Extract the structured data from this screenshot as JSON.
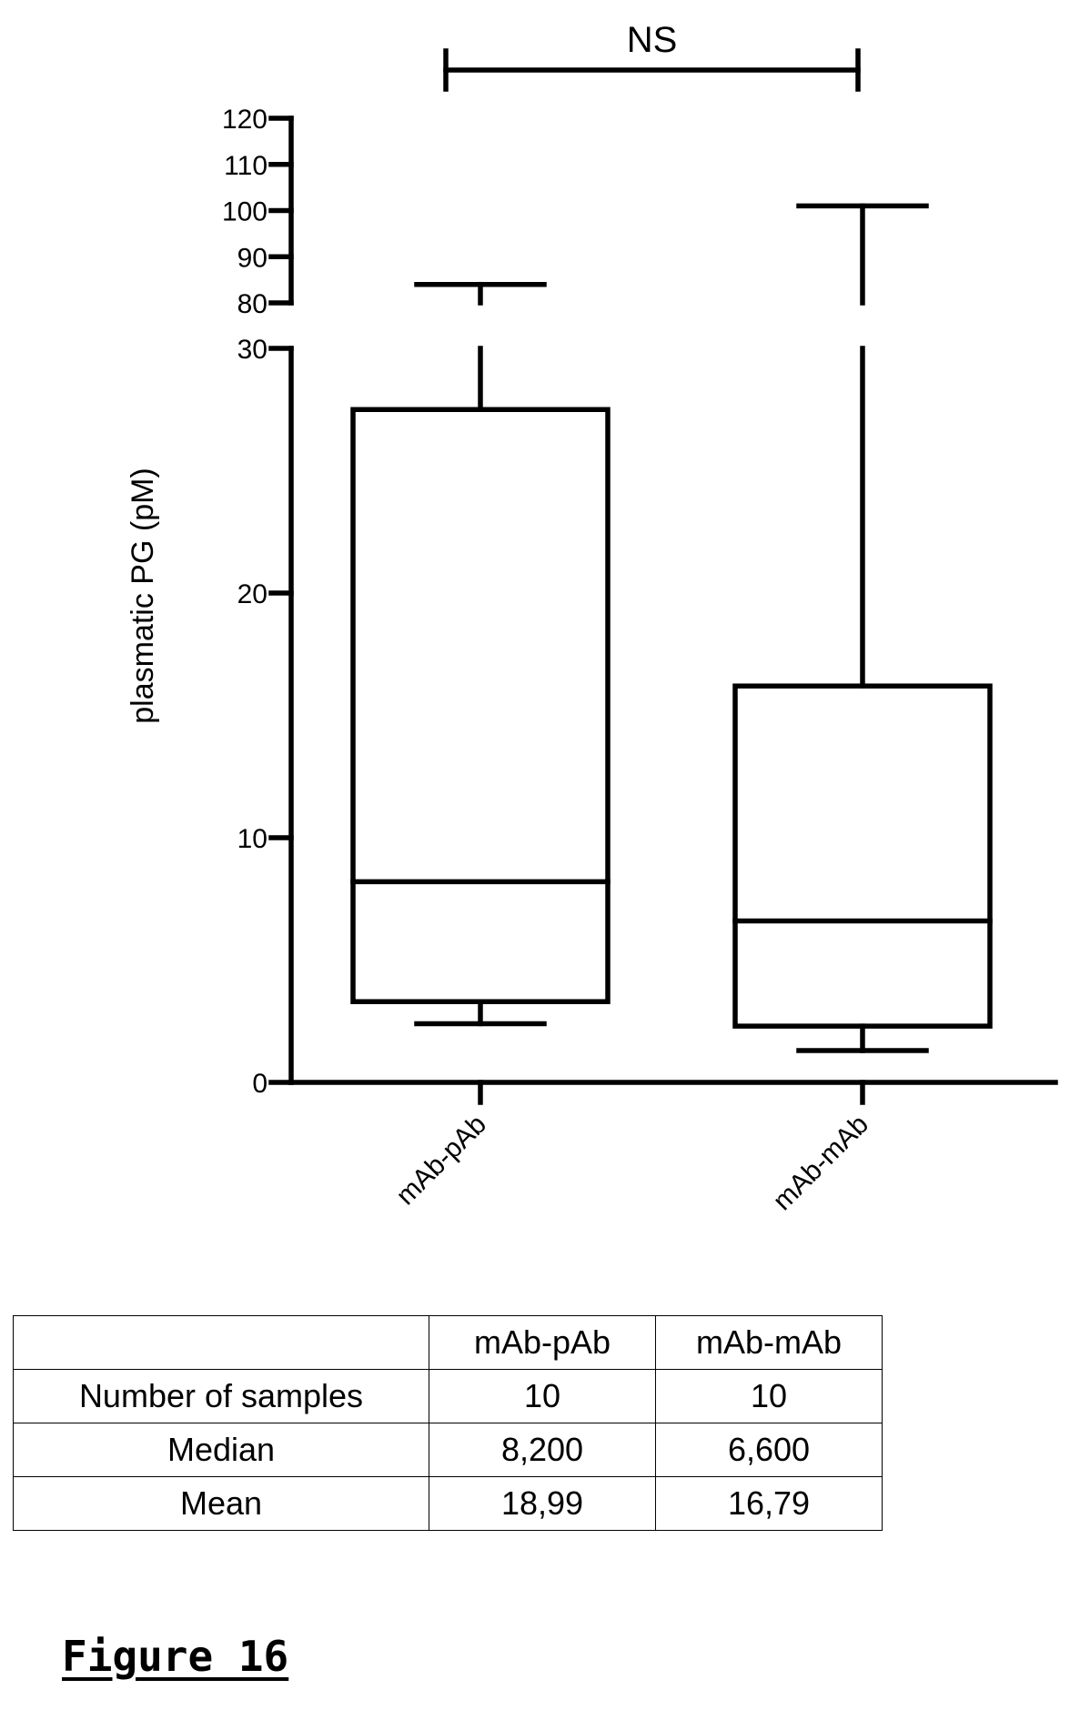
{
  "chart_data": {
    "type": "box",
    "ylabel": "plasmatic PG (pM)",
    "categories": [
      "mAb-pAb",
      "mAb-mAb"
    ],
    "y_axis": {
      "broken": true,
      "lower_segment": {
        "range": [
          0,
          30
        ],
        "ticks": [
          0,
          10,
          20,
          30
        ]
      },
      "upper_segment": {
        "range": [
          80,
          120
        ],
        "ticks": [
          80,
          90,
          100,
          110,
          120
        ]
      }
    },
    "series": [
      {
        "category": "mAb-pAb",
        "whisker_low": 2.4,
        "q1": 3.3,
        "median": 8.2,
        "q3": 27.5,
        "whisker_high": 84
      },
      {
        "category": "mAb-mAb",
        "whisker_low": 1.3,
        "q1": 2.3,
        "median": 6.6,
        "q3": 16.2,
        "whisker_high": 101
      }
    ],
    "significance": {
      "groups": [
        "mAb-pAb",
        "mAb-mAb"
      ],
      "label": "NS"
    },
    "grid": false,
    "legend": "none"
  },
  "table": {
    "header": [
      "",
      "mAb-pAb",
      "mAb-mAb"
    ],
    "rows": [
      {
        "label": "Number of samples",
        "values": [
          "10",
          "10"
        ]
      },
      {
        "label": "Median",
        "values": [
          "8,200",
          "6,600"
        ]
      },
      {
        "label": "Mean",
        "values": [
          "18,99",
          "16,79"
        ]
      }
    ]
  },
  "caption": "Figure 16"
}
